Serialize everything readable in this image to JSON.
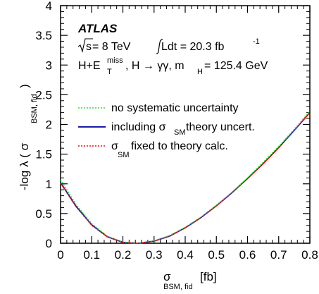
{
  "chart_data": {
    "type": "line",
    "title": "",
    "experiment_label": "ATLAS",
    "annotations": {
      "line1": {
        "sqrt": "s",
        "mid": " = 8 TeV",
        "lumi": " Ldt = 20.3 fb",
        "lumi_sup": "-1"
      },
      "line2": {
        "a": "H+E",
        "a_sup": "miss",
        "a_sub": "T",
        "b": ", H → γγ, m",
        "b_sub": "H",
        "c": " = 125.4 GeV"
      }
    },
    "xlabel": {
      "main": "σ",
      "sub": "BSM, fid",
      "unit": " [fb]"
    },
    "ylabel": {
      "main": "-log λ ( σ",
      "sub": "BSM, fid",
      "close": " )"
    },
    "xlim": [
      0,
      0.8
    ],
    "ylim": [
      0,
      4
    ],
    "x_ticks": [
      "0",
      "0.1",
      "0.2",
      "0.3",
      "0.4",
      "0.5",
      "0.6",
      "0.7",
      "0.8"
    ],
    "y_ticks": [
      "0",
      "0.5",
      "1",
      "1.5",
      "2",
      "2.5",
      "3",
      "3.5",
      "4"
    ],
    "legend_position": "center-right",
    "series": [
      {
        "name": "no systematic uncertainty",
        "color": "#33dd33",
        "style": "dotted",
        "x": [
          0,
          0.05,
          0.1,
          0.15,
          0.2,
          0.25,
          0.3,
          0.35,
          0.4,
          0.45,
          0.5,
          0.55,
          0.6,
          0.65,
          0.7,
          0.75,
          0.8
        ],
        "y": [
          1.07,
          0.65,
          0.33,
          0.12,
          0.02,
          0.0,
          0.04,
          0.13,
          0.27,
          0.44,
          0.64,
          0.86,
          1.1,
          1.36,
          1.63,
          1.92,
          2.22
        ]
      },
      {
        "name": "including σ_SM theory uncert.",
        "legend_main": "including σ",
        "legend_sub": "SM",
        "legend_rest": " theory uncert.",
        "color": "#1a1aa6",
        "style": "solid",
        "x": [
          0,
          0.05,
          0.1,
          0.15,
          0.2,
          0.25,
          0.3,
          0.35,
          0.4,
          0.45,
          0.5,
          0.55,
          0.6,
          0.65,
          0.7,
          0.75,
          0.8
        ],
        "y": [
          1.02,
          0.62,
          0.31,
          0.11,
          0.015,
          0.0,
          0.035,
          0.12,
          0.26,
          0.43,
          0.63,
          0.85,
          1.09,
          1.34,
          1.61,
          1.9,
          2.2
        ]
      },
      {
        "name": "σ_SM fixed to theory calc.",
        "legend_main": "σ",
        "legend_sub": "SM",
        "legend_rest": " fixed to theory calc.",
        "color": "#ee1111",
        "style": "dotted",
        "x": [
          0,
          0.05,
          0.1,
          0.15,
          0.2,
          0.25,
          0.3,
          0.35,
          0.4,
          0.45,
          0.5,
          0.55,
          0.6,
          0.65,
          0.7,
          0.75,
          0.8
        ],
        "y": [
          1.01,
          0.61,
          0.3,
          0.105,
          0.012,
          0.0,
          0.033,
          0.118,
          0.257,
          0.427,
          0.627,
          0.848,
          1.088,
          1.338,
          1.608,
          1.898,
          2.198
        ]
      }
    ]
  }
}
